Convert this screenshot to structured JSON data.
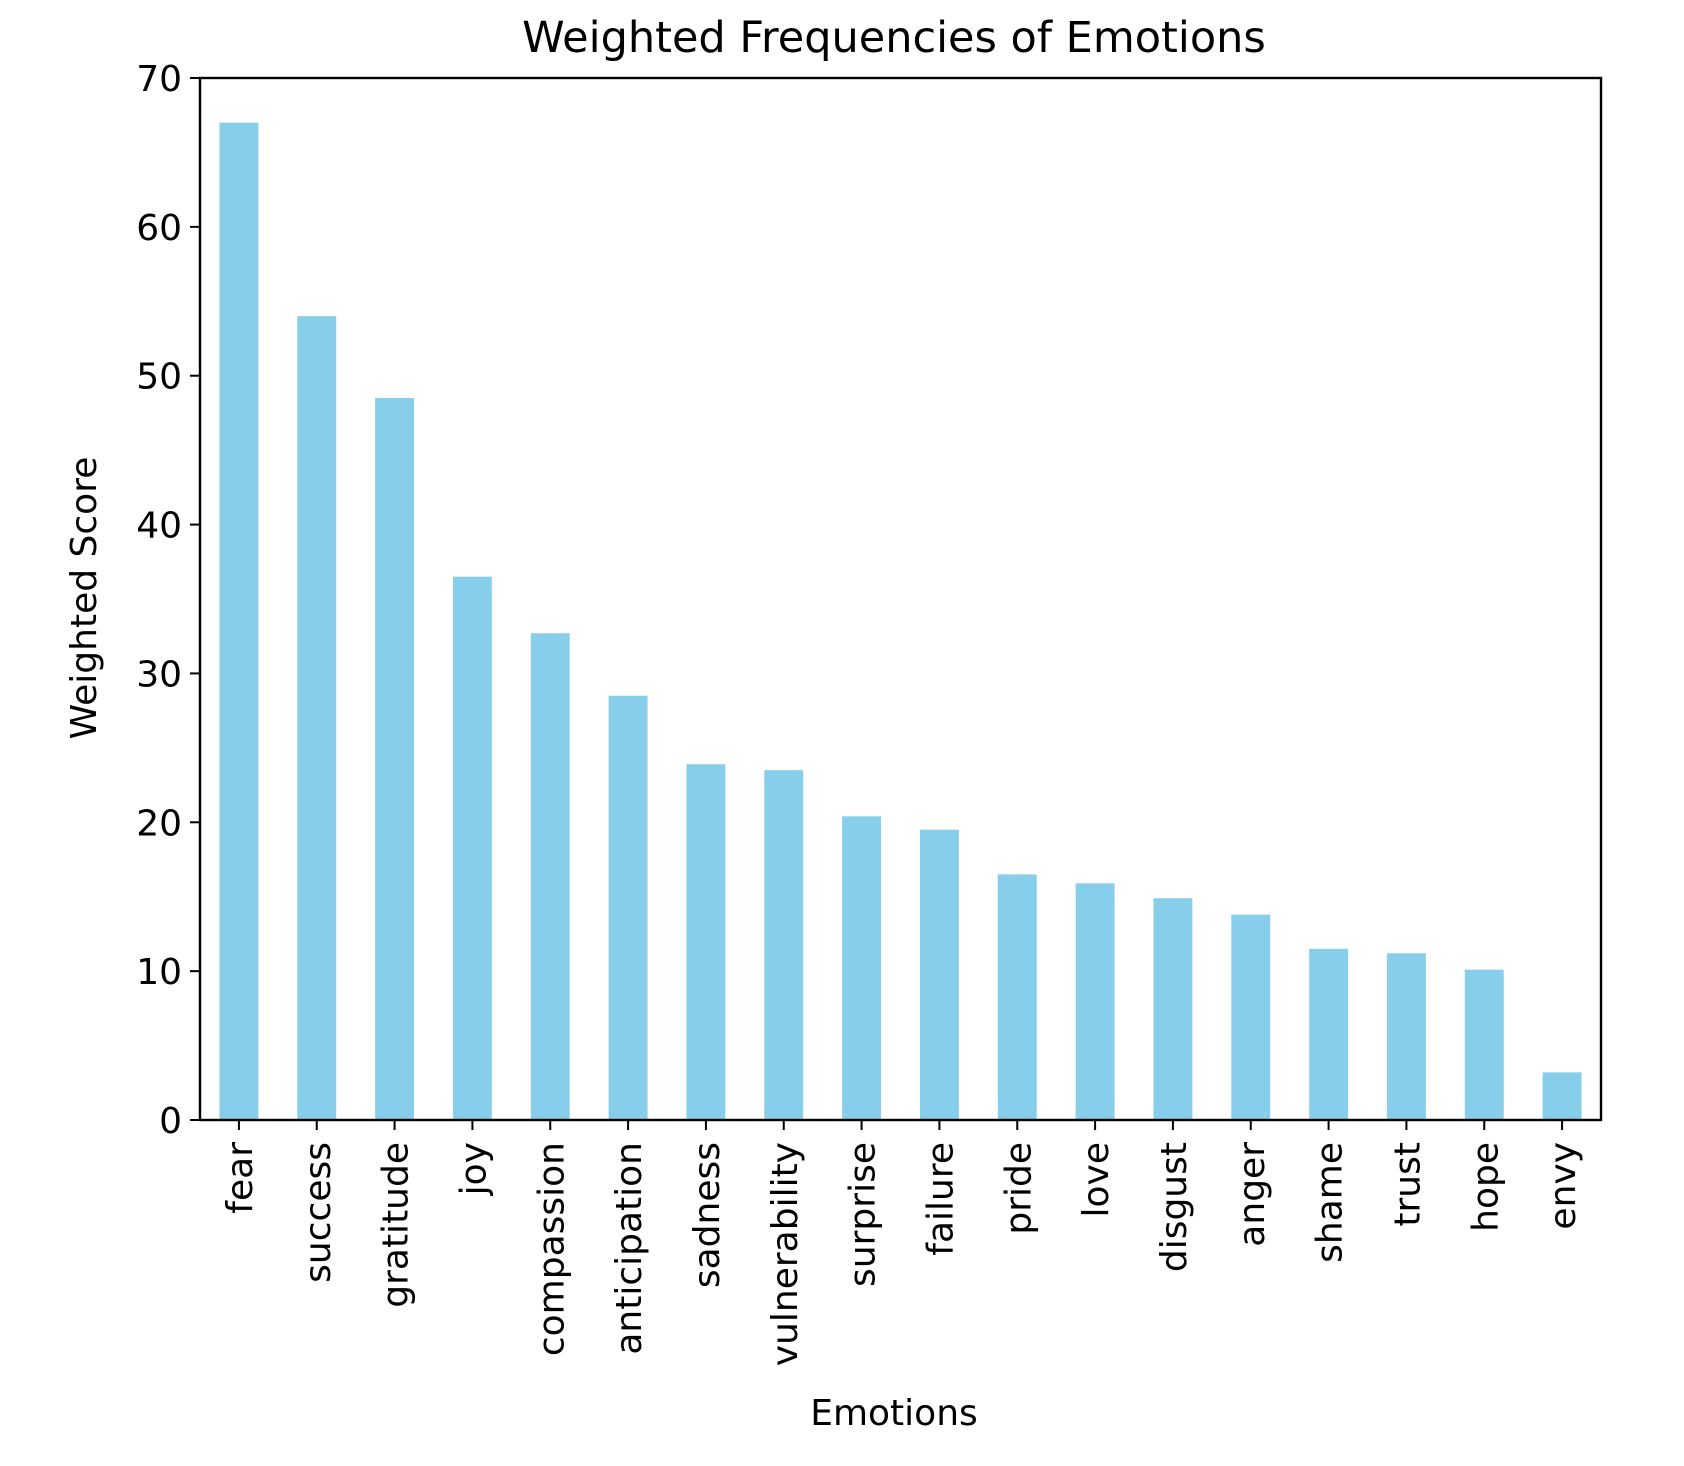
{
  "chart_data": {
    "type": "bar",
    "title": "Weighted Frequencies of Emotions",
    "xlabel": "Emotions",
    "ylabel": "Weighted Score",
    "categories": [
      "fear",
      "success",
      "gratitude",
      "joy",
      "compassion",
      "anticipation",
      "sadness",
      "vulnerability",
      "surprise",
      "failure",
      "pride",
      "love",
      "disgust",
      "anger",
      "shame",
      "trust",
      "hope",
      "envy"
    ],
    "values": [
      67.0,
      54.0,
      48.5,
      36.5,
      32.7,
      28.5,
      23.9,
      23.5,
      20.4,
      19.5,
      16.5,
      15.9,
      14.9,
      13.8,
      11.5,
      11.2,
      10.1,
      3.2
    ],
    "ylim": [
      0,
      70
    ],
    "yticks": [
      0,
      10,
      20,
      30,
      40,
      50,
      60,
      70
    ],
    "grid": false,
    "bar_color": "#87ceeb",
    "legend": null
  }
}
